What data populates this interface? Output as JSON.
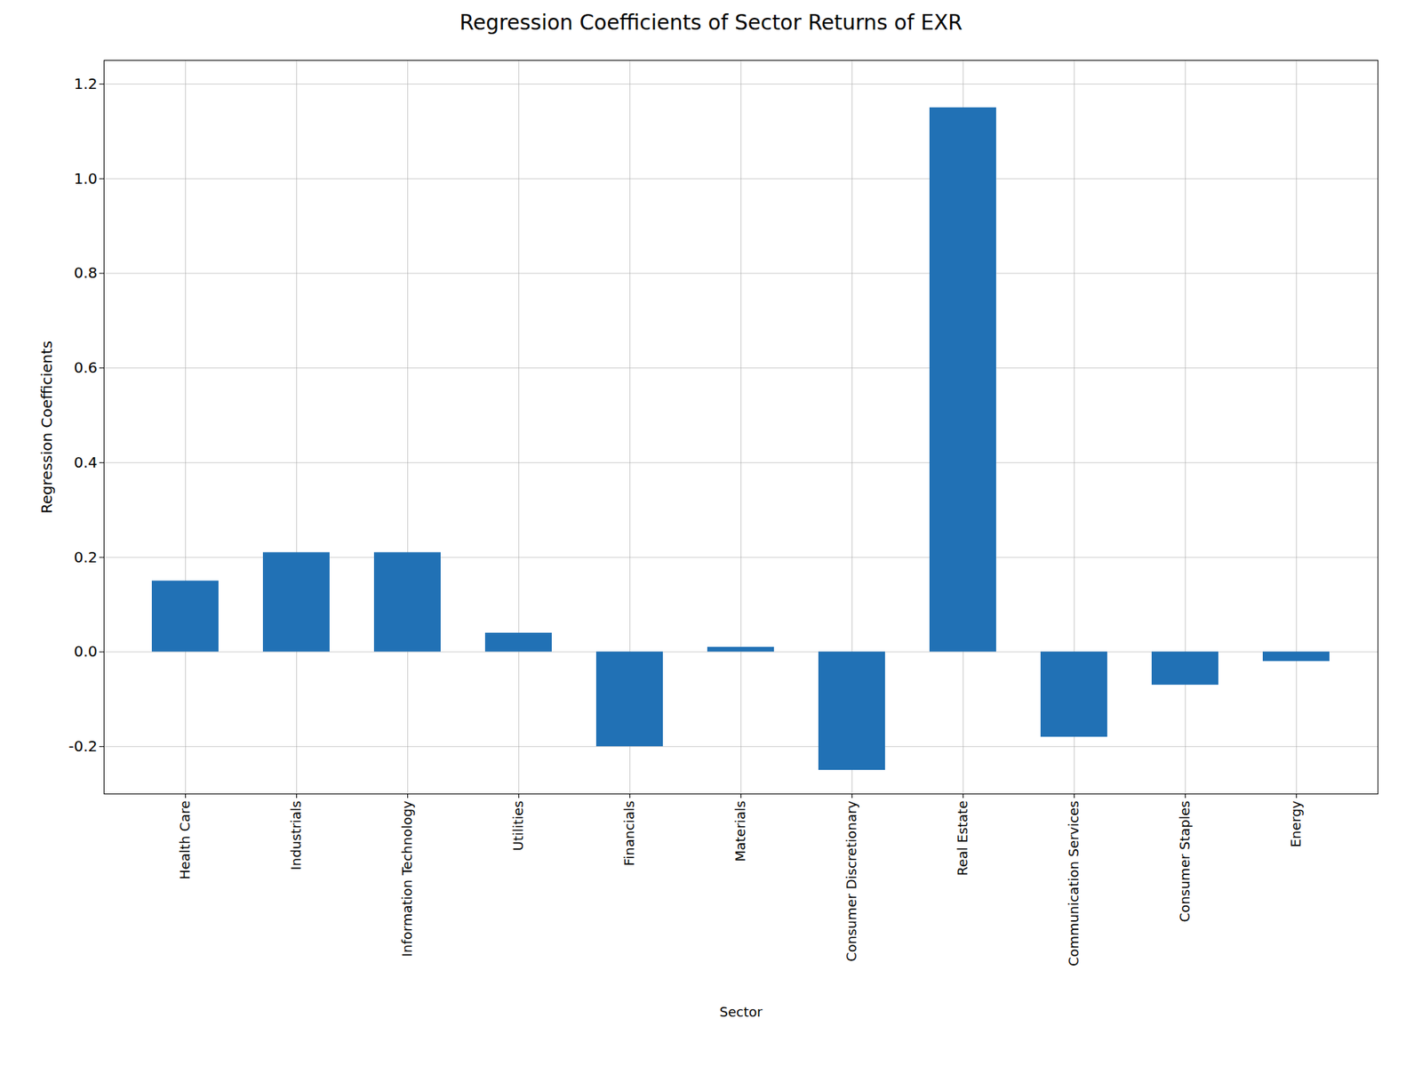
{
  "chart_data": {
    "type": "bar",
    "title": "Regression Coefficients of Sector Returns of EXR",
    "xlabel": "Sector",
    "ylabel": "Regression Coefficients",
    "categories": [
      "Health Care",
      "Industrials",
      "Information Technology",
      "Utilities",
      "Financials",
      "Materials",
      "Consumer Discretionary",
      "Real Estate",
      "Communication Services",
      "Consumer Staples",
      "Energy"
    ],
    "values": [
      0.15,
      0.21,
      0.21,
      0.04,
      -0.2,
      0.01,
      -0.25,
      1.15,
      -0.18,
      -0.07,
      -0.02
    ],
    "color": "#2171b5",
    "ylim": [
      -0.3,
      1.25
    ],
    "yticks": [
      -0.2,
      {
        "value": 0,
        "label": "0.0"
      },
      0.2,
      0.4,
      0.6,
      0.8,
      {
        "value": 1,
        "label": "1.0"
      },
      1.2
    ],
    "grid": true
  }
}
